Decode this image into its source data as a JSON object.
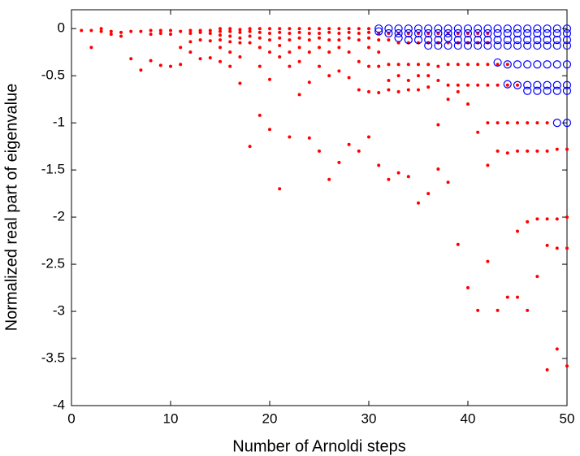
{
  "chart_data": {
    "type": "scatter",
    "xlabel": "Number of Arnoldi steps",
    "ylabel": "Normalized real part of eigenvalue",
    "xlim": [
      0,
      50
    ],
    "ylim": [
      -4,
      0.2
    ],
    "xticks": [
      0,
      10,
      20,
      30,
      40,
      50
    ],
    "yticks": [
      0,
      -0.5,
      -1,
      -1.5,
      -2,
      -2.5,
      -3,
      -3.5,
      -4
    ],
    "grid": false,
    "series": [
      {
        "color": "#ff0000",
        "marker": "dot",
        "x": [
          1,
          2,
          2,
          3,
          3,
          4,
          4,
          5,
          5,
          6,
          6,
          7,
          7,
          8,
          8,
          8,
          9,
          9,
          9,
          10,
          10,
          10,
          11,
          11,
          11,
          12,
          12,
          12,
          12,
          13,
          13,
          13,
          13,
          14,
          14,
          14,
          14,
          15,
          15,
          15,
          15,
          15,
          15,
          16,
          16,
          16,
          16,
          16,
          16,
          17,
          17,
          17,
          17,
          17,
          17,
          18,
          18,
          18,
          18,
          18,
          19,
          19,
          19,
          19,
          19,
          19,
          20,
          20,
          20,
          20,
          20,
          20,
          21,
          21,
          21,
          21,
          21,
          21,
          22,
          22,
          22,
          22,
          22,
          22,
          23,
          23,
          23,
          23,
          23,
          23,
          24,
          24,
          24,
          24,
          24,
          24,
          25,
          25,
          25,
          25,
          25,
          25,
          26,
          26,
          26,
          26,
          26,
          26,
          27,
          27,
          27,
          27,
          27,
          27,
          28,
          28,
          28,
          28,
          28,
          28,
          29,
          29,
          29,
          29,
          29,
          29,
          30,
          30,
          30,
          30,
          30,
          30,
          30,
          31,
          31,
          31,
          31,
          31,
          31,
          32,
          32,
          32,
          32,
          32,
          32,
          33,
          33,
          33,
          33,
          33,
          33,
          34,
          34,
          34,
          34,
          34,
          34,
          35,
          35,
          35,
          35,
          35,
          35,
          36,
          36,
          36,
          36,
          36,
          36,
          37,
          37,
          37,
          37,
          37,
          37,
          38,
          38,
          38,
          38,
          38,
          38,
          39,
          39,
          39,
          39,
          39,
          39,
          40,
          40,
          40,
          40,
          40,
          40,
          41,
          41,
          41,
          41,
          41,
          41,
          42,
          42,
          42,
          42,
          42,
          42,
          42,
          43,
          43,
          43,
          43,
          43,
          44,
          44,
          44,
          44,
          44,
          45,
          45,
          45,
          45,
          45,
          46,
          46,
          46,
          46,
          47,
          47,
          47,
          47,
          48,
          48,
          48,
          48,
          48,
          49,
          49,
          49,
          49,
          50,
          50,
          50,
          50
        ],
        "values": [
          -0.02,
          -0.02,
          -0.2,
          0,
          -0.03,
          -0.03,
          -0.06,
          -0.04,
          -0.08,
          -0.03,
          -0.32,
          -0.03,
          -0.44,
          -0.02,
          -0.06,
          -0.34,
          -0.02,
          -0.05,
          -0.39,
          -0.02,
          -0.06,
          -0.4,
          -0.03,
          -0.2,
          -0.38,
          -0.02,
          -0.05,
          -0.14,
          -0.25,
          -0.02,
          -0.04,
          -0.12,
          -0.32,
          -0.02,
          -0.05,
          -0.13,
          -0.31,
          0,
          -0.03,
          -0.07,
          -0.12,
          -0.2,
          -0.35,
          0,
          -0.03,
          -0.08,
          -0.14,
          -0.25,
          -0.4,
          -0.01,
          -0.04,
          -0.1,
          -0.15,
          -0.3,
          -0.58,
          0,
          -0.03,
          -0.08,
          -0.15,
          -1.25,
          0,
          -0.04,
          -0.1,
          -0.2,
          -0.4,
          -0.92,
          0,
          -0.05,
          -0.12,
          -0.25,
          -0.54,
          -1.07,
          0,
          -0.04,
          -0.1,
          -0.18,
          -0.3,
          -1.7,
          0,
          -0.05,
          -0.12,
          -0.25,
          -0.4,
          -1.15,
          0,
          -0.04,
          -0.1,
          -0.2,
          -0.35,
          -0.7,
          0,
          -0.05,
          -0.12,
          -0.25,
          -0.57,
          -1.16,
          0,
          -0.05,
          -0.1,
          -0.2,
          -0.4,
          -1.3,
          0,
          -0.04,
          -0.12,
          -0.25,
          -0.5,
          -1.6,
          0,
          -0.05,
          -0.12,
          -0.2,
          -0.45,
          -1.42,
          0,
          -0.04,
          -0.1,
          -0.25,
          -0.52,
          -1.23,
          0,
          -0.05,
          -0.12,
          -0.35,
          -0.65,
          -1.3,
          0,
          -0.04,
          -0.1,
          -0.2,
          -0.4,
          -0.67,
          -1.15,
          -0.05,
          -0.12,
          -0.25,
          -0.4,
          -0.68,
          -1.45,
          -0.05,
          -0.12,
          -0.38,
          -0.55,
          -0.65,
          -1.6,
          -0.05,
          -0.15,
          -0.38,
          -0.5,
          -0.67,
          -1.53,
          -0.05,
          -0.15,
          -0.38,
          -0.55,
          -0.65,
          -1.57,
          -0.05,
          -0.15,
          -0.38,
          -0.5,
          -0.65,
          -1.85,
          -0.05,
          -0.15,
          -0.38,
          -0.5,
          -0.62,
          -1.75,
          -0.05,
          -0.15,
          -0.4,
          -0.55,
          -1.02,
          -1.49,
          -0.05,
          -0.15,
          -0.38,
          -0.6,
          -0.75,
          -1.63,
          -0.05,
          -0.15,
          -0.38,
          -0.6,
          -0.67,
          -2.29,
          -0.05,
          -0.15,
          -0.38,
          -0.6,
          -0.8,
          -2.75,
          -0.05,
          -0.15,
          -0.38,
          -0.6,
          -1.1,
          -2.99,
          -0.05,
          -0.15,
          -0.38,
          -0.6,
          -1.0,
          -1.45,
          -2.47,
          -0.38,
          -0.6,
          -1.0,
          -1.3,
          -2.99,
          -0.38,
          -0.6,
          -1.0,
          -1.32,
          -2.85,
          -0.6,
          -1.0,
          -1.3,
          -2.15,
          -2.85,
          -1.0,
          -1.3,
          -2.05,
          -2.99,
          -1.0,
          -1.3,
          -2.02,
          -2.63,
          -1.0,
          -1.3,
          -2.02,
          -2.3,
          -3.62,
          -1.28,
          -2.02,
          -2.33,
          -3.4,
          -1.28,
          -2.0,
          -2.33,
          -3.58
        ]
      },
      {
        "color": "#0000ff",
        "marker": "circle",
        "x": [
          31,
          31,
          32,
          32,
          33,
          33,
          33,
          34,
          34,
          34,
          35,
          35,
          35,
          36,
          36,
          36,
          36,
          37,
          37,
          37,
          37,
          38,
          38,
          38,
          38,
          39,
          39,
          39,
          39,
          40,
          40,
          40,
          40,
          41,
          41,
          41,
          41,
          42,
          42,
          42,
          42,
          43,
          43,
          43,
          43,
          43,
          44,
          44,
          44,
          44,
          44,
          44,
          45,
          45,
          45,
          45,
          45,
          45,
          46,
          46,
          46,
          46,
          46,
          46,
          46,
          47,
          47,
          47,
          47,
          47,
          47,
          47,
          48,
          48,
          48,
          48,
          48,
          48,
          48,
          49,
          49,
          49,
          49,
          49,
          49,
          49,
          49,
          50,
          50,
          50,
          50,
          50,
          50,
          50,
          50
        ],
        "values": [
          0,
          -0.03,
          0,
          -0.05,
          0,
          -0.05,
          -0.1,
          0,
          -0.05,
          -0.12,
          0,
          -0.05,
          -0.12,
          0,
          -0.05,
          -0.12,
          -0.18,
          0,
          -0.05,
          -0.12,
          -0.18,
          0,
          -0.05,
          -0.1,
          -0.18,
          0,
          -0.05,
          -0.12,
          -0.18,
          0,
          -0.05,
          -0.12,
          -0.18,
          0,
          -0.05,
          -0.12,
          -0.18,
          0,
          -0.05,
          -0.12,
          -0.18,
          0,
          -0.05,
          -0.12,
          -0.18,
          -0.36,
          0,
          -0.05,
          -0.12,
          -0.18,
          -0.38,
          -0.59,
          0,
          -0.05,
          -0.12,
          -0.18,
          -0.38,
          -0.6,
          0,
          -0.05,
          -0.12,
          -0.18,
          -0.38,
          -0.6,
          -0.66,
          0,
          -0.05,
          -0.12,
          -0.18,
          -0.38,
          -0.6,
          -0.66,
          0,
          -0.05,
          -0.12,
          -0.18,
          -0.38,
          -0.6,
          -0.66,
          0,
          -0.05,
          -0.12,
          -0.18,
          -0.38,
          -0.6,
          -0.66,
          -1.0,
          0,
          -0.05,
          -0.12,
          -0.18,
          -0.38,
          -0.6,
          -0.66,
          -1.0
        ]
      }
    ]
  }
}
